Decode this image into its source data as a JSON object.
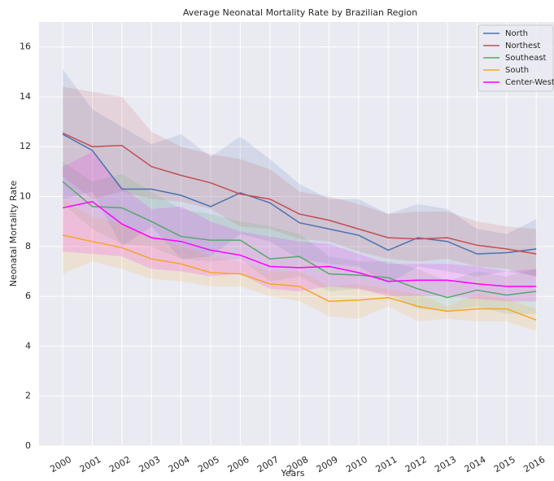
{
  "chart_data": {
    "type": "line",
    "title": "Average Neonatal Mortality Rate by Brazilian Region",
    "x_label": "Years",
    "y_label": "Neonatal Mortality Rate",
    "x": [
      2000,
      2001,
      2002,
      2003,
      2004,
      2005,
      2006,
      2007,
      2008,
      2009,
      2010,
      2011,
      2012,
      2013,
      2014,
      2015,
      2016
    ],
    "xlim": [
      1999.2,
      2016.6
    ],
    "xticks": [
      2000,
      2001,
      2002,
      2003,
      2004,
      2005,
      2006,
      2007,
      2008,
      2009,
      2010,
      2011,
      2012,
      2013,
      2014,
      2015,
      2016
    ],
    "ylim": [
      0,
      17
    ],
    "yticks": [
      0,
      2,
      4,
      6,
      8,
      10,
      12,
      14,
      16
    ],
    "grid": true,
    "legend": "upper right",
    "series": [
      {
        "name": "North",
        "color": "#4c72b0",
        "values": [
          12.5,
          11.85,
          10.3,
          10.3,
          10.05,
          9.6,
          10.15,
          9.75,
          8.95,
          8.7,
          8.45,
          7.85,
          8.35,
          8.2,
          7.7,
          7.75,
          7.9
        ],
        "ci_high": [
          15.1,
          13.5,
          12.8,
          12.1,
          12.5,
          11.6,
          12.4,
          11.5,
          10.5,
          9.9,
          9.9,
          9.3,
          9.7,
          9.5,
          8.7,
          8.5,
          9.1
        ],
        "ci_low": [
          9.9,
          10.2,
          8.0,
          8.8,
          7.5,
          7.6,
          8.5,
          8.2,
          7.5,
          7.3,
          7.2,
          6.5,
          7.2,
          7.0,
          6.8,
          7.0,
          6.8
        ]
      },
      {
        "name": "Northest",
        "color": "#c44e52",
        "values": [
          12.55,
          12.0,
          12.05,
          11.2,
          10.85,
          10.55,
          10.1,
          9.9,
          9.3,
          9.05,
          8.7,
          8.35,
          8.3,
          8.35,
          8.05,
          7.9,
          7.7
        ],
        "ci_high": [
          14.4,
          14.2,
          14.0,
          12.6,
          12.0,
          11.7,
          11.5,
          11.1,
          10.2,
          10.0,
          9.7,
          9.3,
          9.4,
          9.4,
          9.0,
          8.8,
          8.7
        ],
        "ci_low": [
          10.8,
          9.9,
          10.2,
          9.9,
          9.8,
          9.5,
          8.8,
          8.7,
          8.3,
          8.2,
          7.8,
          7.5,
          7.4,
          7.5,
          7.2,
          7.1,
          6.8
        ]
      },
      {
        "name": "Southeast",
        "color": "#55a868",
        "values": [
          10.6,
          9.6,
          9.55,
          9.0,
          8.4,
          8.25,
          8.25,
          7.5,
          7.6,
          6.9,
          6.85,
          6.75,
          6.3,
          5.95,
          6.25,
          6.05,
          6.2
        ],
        "ci_high": [
          11.4,
          10.6,
          10.9,
          10.2,
          9.5,
          9.3,
          9.0,
          8.8,
          8.5,
          7.6,
          7.4,
          7.4,
          7.1,
          6.6,
          7.0,
          6.8,
          7.1
        ],
        "ci_low": [
          9.7,
          8.7,
          8.1,
          8.0,
          7.5,
          7.4,
          7.5,
          6.6,
          6.8,
          6.2,
          6.3,
          6.1,
          5.5,
          5.4,
          5.6,
          5.3,
          5.3
        ]
      },
      {
        "name": "South",
        "color": "#f5a623",
        "values": [
          8.45,
          8.2,
          7.95,
          7.5,
          7.3,
          6.95,
          6.9,
          6.5,
          6.4,
          5.8,
          5.85,
          5.95,
          5.6,
          5.4,
          5.5,
          5.5,
          5.05
        ],
        "ci_high": [
          9.9,
          9.2,
          8.9,
          8.4,
          8.0,
          7.6,
          7.4,
          7.0,
          7.0,
          6.4,
          6.5,
          6.3,
          6.1,
          5.6,
          6.1,
          5.9,
          5.5
        ],
        "ci_low": [
          6.9,
          7.4,
          7.1,
          6.7,
          6.6,
          6.4,
          6.4,
          6.0,
          5.8,
          5.2,
          5.1,
          5.6,
          5.0,
          5.1,
          5.0,
          5.0,
          4.6
        ]
      },
      {
        "name": "Center-West",
        "color": "#ff00ff",
        "values": [
          9.55,
          9.8,
          8.9,
          8.35,
          8.2,
          7.85,
          7.65,
          7.2,
          7.15,
          7.2,
          6.95,
          6.6,
          6.65,
          6.65,
          6.5,
          6.4,
          6.4
        ],
        "ci_high": [
          11.2,
          11.8,
          10.4,
          9.5,
          9.6,
          9.0,
          8.6,
          8.4,
          8.2,
          8.1,
          7.7,
          7.3,
          7.3,
          7.3,
          7.2,
          7.0,
          7.1
        ],
        "ci_low": [
          7.8,
          7.7,
          7.6,
          7.1,
          7.0,
          6.8,
          6.9,
          6.3,
          6.2,
          6.4,
          6.3,
          6.0,
          6.0,
          6.0,
          5.9,
          5.8,
          5.8
        ]
      }
    ]
  }
}
